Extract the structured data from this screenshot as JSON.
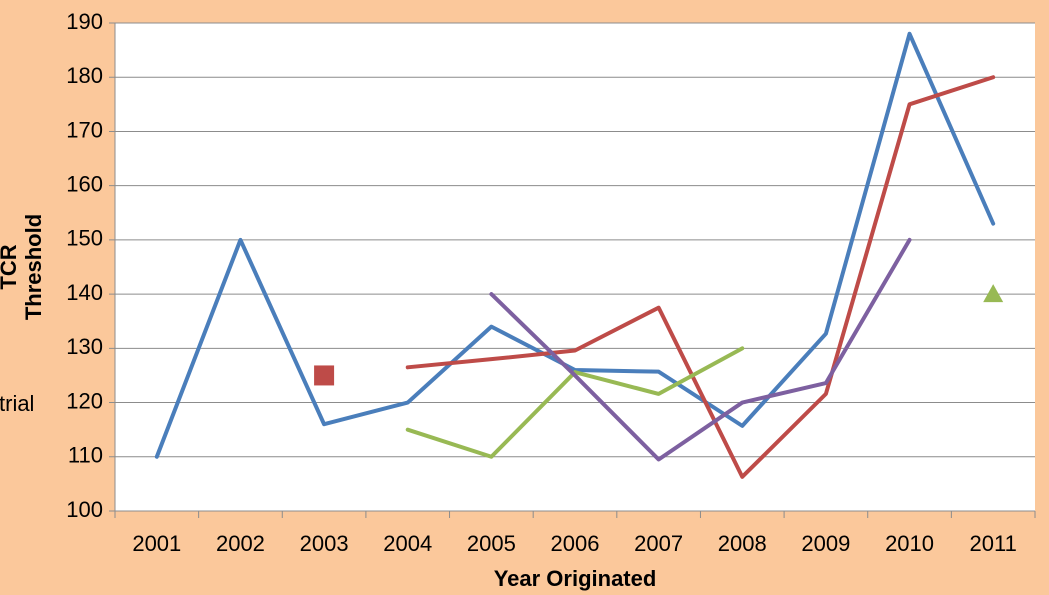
{
  "chart_data": {
    "type": "line",
    "y_label": [
      "TCR",
      "Threshold"
    ],
    "x_label": "Year Originated",
    "annotations": [
      "trial"
    ],
    "categories": [
      "2001",
      "2002",
      "2003",
      "2004",
      "2005",
      "2006",
      "2007",
      "2008",
      "2009",
      "2010",
      "2011"
    ],
    "series": [
      {
        "color": "#4a7ebb",
        "values": [
          110,
          150,
          116,
          120,
          134,
          126,
          125.7,
          115.7,
          132.7,
          188,
          153
        ]
      },
      {
        "color": "#be4b48",
        "values": [
          null,
          null,
          null,
          126.5,
          128,
          129.6,
          137.5,
          106.3,
          121.6,
          175,
          180
        ]
      },
      {
        "color": "#98b954",
        "values": [
          null,
          null,
          null,
          115,
          110,
          125.6,
          121.6,
          130,
          null,
          null,
          null
        ]
      },
      {
        "color": "#7d60a0",
        "values": [
          null,
          null,
          null,
          null,
          140,
          125,
          109.5,
          120,
          123.6,
          150,
          null
        ]
      },
      {
        "color": "#be4b48",
        "marker": "square",
        "values": [
          null,
          null,
          125,
          null,
          null,
          null,
          null,
          null,
          null,
          null,
          null
        ]
      },
      {
        "color": "#98b954",
        "marker": "triangle",
        "values": [
          null,
          null,
          null,
          null,
          null,
          null,
          null,
          null,
          null,
          null,
          140
        ]
      }
    ],
    "ylim": [
      100,
      190
    ],
    "yticks": [
      100,
      110,
      120,
      130,
      140,
      150,
      160,
      170,
      180,
      190
    ],
    "grid": true
  }
}
